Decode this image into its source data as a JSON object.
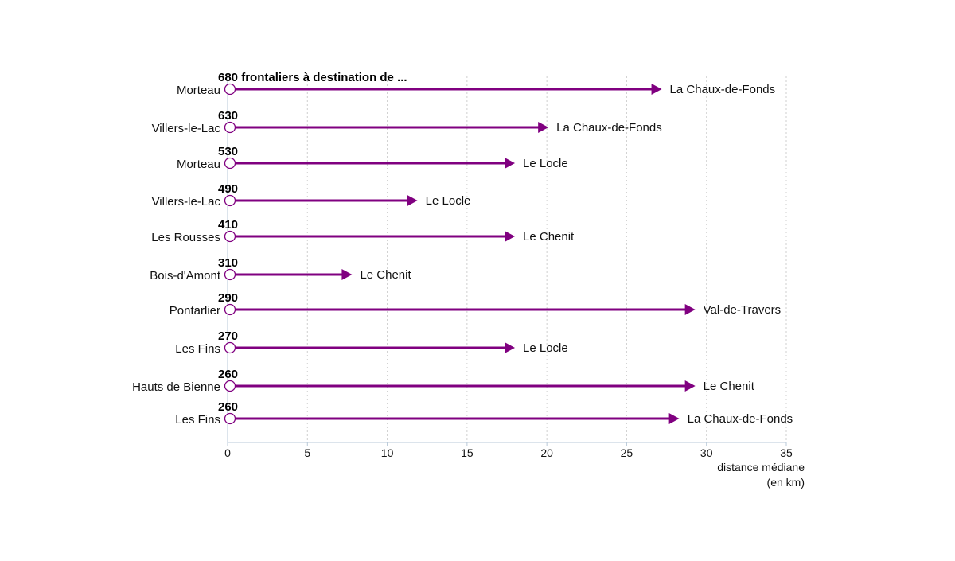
{
  "chart_data": {
    "type": "bar",
    "orientation": "horizontal",
    "mark": "arrow",
    "title": "680 frontaliers à destination de ...",
    "xlabel_lines": [
      "distance médiane",
      "(en km)"
    ],
    "xlim": [
      0,
      35
    ],
    "xticks": [
      0,
      5,
      10,
      15,
      20,
      25,
      30,
      35
    ],
    "grid": "vertical dotted",
    "colors": {
      "arrow": "#800080",
      "origin_marker": "#800080",
      "grid": "#cfcfcf",
      "axis": "#b8c8d8"
    },
    "rows": [
      {
        "count": "680 frontaliers à destination de ...",
        "origin": "Morteau",
        "destination": "La Chaux-de-Fonds",
        "distance": 27.1
      },
      {
        "count": "630",
        "origin": "Villers-le-Lac",
        "destination": "La Chaux-de-Fonds",
        "distance": 20.0
      },
      {
        "count": "530",
        "origin": "Morteau",
        "destination": "Le Locle",
        "distance": 17.9
      },
      {
        "count": "490",
        "origin": "Villers-le-Lac",
        "destination": "Le Locle",
        "distance": 11.8
      },
      {
        "count": "410",
        "origin": "Les Rousses",
        "destination": "Le Chenit",
        "distance": 17.9
      },
      {
        "count": "310",
        "origin": "Bois-d'Amont",
        "destination": "Le Chenit",
        "distance": 7.7
      },
      {
        "count": "290",
        "origin": "Pontarlier",
        "destination": "Val-de-Travers",
        "distance": 29.2
      },
      {
        "count": "270",
        "origin": "Les Fins",
        "destination": "Le Locle",
        "distance": 17.9
      },
      {
        "count": "260",
        "origin": "Hauts de Bienne",
        "destination": "Le Chenit",
        "distance": 29.2
      },
      {
        "count": "260",
        "origin": "Les Fins",
        "destination": "La Chaux-de-Fonds",
        "distance": 28.2
      }
    ]
  }
}
